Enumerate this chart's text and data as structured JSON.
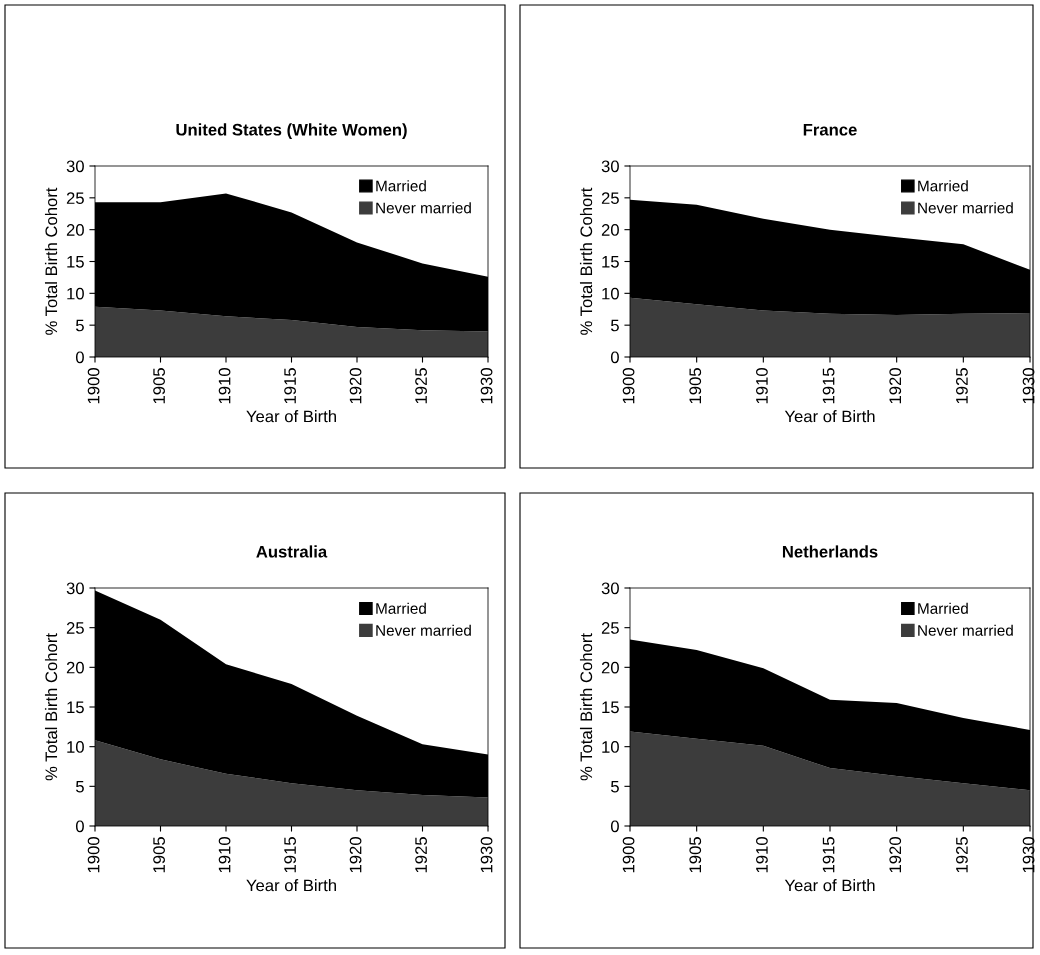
{
  "chart_data": [
    {
      "type": "area",
      "stacked": true,
      "title": "United States (White Women)",
      "xlabel": "Year of Birth",
      "ylabel": "% Total Birth Cohort",
      "x": [
        1900,
        1905,
        1910,
        1915,
        1920,
        1925,
        1930
      ],
      "xlim": [
        1900,
        1930
      ],
      "xticks": [
        1900,
        1905,
        1910,
        1915,
        1920,
        1925,
        1930
      ],
      "ylim": [
        0,
        30
      ],
      "yticks": [
        0,
        5,
        10,
        15,
        20,
        25,
        30
      ],
      "legend": "top right",
      "grid": false,
      "series": [
        {
          "name": "Never married",
          "color": "#3c3c3c",
          "values": [
            7.9,
            7.3,
            6.4,
            5.8,
            4.7,
            4.2,
            4.0
          ]
        },
        {
          "name": "Married",
          "color": "#000000",
          "values": [
            16.4,
            17.0,
            19.3,
            16.9,
            13.3,
            10.5,
            8.6
          ]
        }
      ]
    },
    {
      "type": "area",
      "stacked": true,
      "title": "France",
      "xlabel": "Year of Birth",
      "ylabel": "% Total Birth Cohort",
      "x": [
        1900,
        1905,
        1910,
        1915,
        1920,
        1925,
        1930
      ],
      "xlim": [
        1900,
        1930
      ],
      "xticks": [
        1900,
        1905,
        1910,
        1915,
        1920,
        1925,
        1930
      ],
      "ylim": [
        0,
        30
      ],
      "yticks": [
        0,
        5,
        10,
        15,
        20,
        25,
        30
      ],
      "legend": "top right",
      "grid": false,
      "series": [
        {
          "name": "Never married",
          "color": "#3c3c3c",
          "values": [
            9.3,
            8.3,
            7.3,
            6.8,
            6.6,
            6.8,
            6.9
          ]
        },
        {
          "name": "Married",
          "color": "#000000",
          "values": [
            15.4,
            15.6,
            14.4,
            13.2,
            12.2,
            10.9,
            6.8
          ]
        }
      ]
    },
    {
      "type": "area",
      "stacked": true,
      "title": "Australia",
      "xlabel": "Year of Birth",
      "ylabel": "% Total Birth Cohort",
      "x": [
        1900,
        1905,
        1910,
        1915,
        1920,
        1925,
        1930
      ],
      "xlim": [
        1900,
        1930
      ],
      "xticks": [
        1900,
        1905,
        1910,
        1915,
        1920,
        1925,
        1930
      ],
      "ylim": [
        0,
        30
      ],
      "yticks": [
        0,
        5,
        10,
        15,
        20,
        25,
        30
      ],
      "legend": "top right",
      "grid": false,
      "series": [
        {
          "name": "Never married",
          "color": "#3c3c3c",
          "values": [
            10.8,
            8.4,
            6.6,
            5.4,
            4.5,
            3.9,
            3.6
          ]
        },
        {
          "name": "Married",
          "color": "#000000",
          "values": [
            18.9,
            17.6,
            13.8,
            12.5,
            9.4,
            6.4,
            5.4
          ]
        }
      ]
    },
    {
      "type": "area",
      "stacked": true,
      "title": "Netherlands",
      "xlabel": "Year of Birth",
      "ylabel": "% Total Birth Cohort",
      "x": [
        1900,
        1905,
        1910,
        1915,
        1920,
        1925,
        1930
      ],
      "xlim": [
        1900,
        1930
      ],
      "xticks": [
        1900,
        1905,
        1910,
        1915,
        1920,
        1925,
        1930
      ],
      "ylim": [
        0,
        30
      ],
      "yticks": [
        0,
        5,
        10,
        15,
        20,
        25,
        30
      ],
      "legend": "top right",
      "grid": false,
      "series": [
        {
          "name": "Never married",
          "color": "#3c3c3c",
          "values": [
            11.9,
            11.0,
            10.1,
            7.3,
            6.3,
            5.4,
            4.5
          ]
        },
        {
          "name": "Married",
          "color": "#000000",
          "values": [
            11.6,
            11.2,
            9.8,
            8.6,
            9.2,
            8.2,
            7.6
          ]
        }
      ]
    }
  ]
}
